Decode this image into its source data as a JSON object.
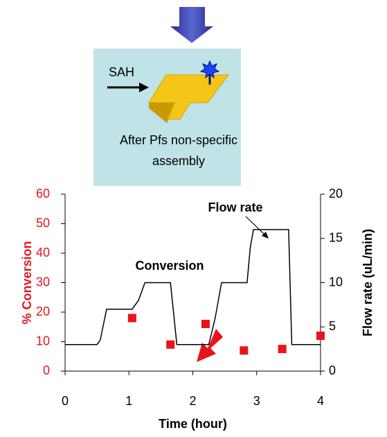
{
  "diagram": {
    "label": "SAH",
    "caption": [
      "After Pfs non-specific",
      "assembly"
    ]
  },
  "chart_data": {
    "type": "combo",
    "xlabel": "Time (hour)",
    "ylabel": "% Conversion",
    "y2label": "Flow rate (uL/min)",
    "xlim": [
      0,
      4
    ],
    "xticks": [
      0,
      1,
      2,
      3,
      4
    ],
    "ylim": [
      0,
      60
    ],
    "yticks": [
      0,
      10,
      20,
      30,
      40,
      50,
      60
    ],
    "y2lim": [
      0,
      20
    ],
    "y2ticks": [
      0,
      5,
      10,
      15,
      20
    ],
    "ycolor": "#e8141c",
    "y2color": "#000000",
    "series": [
      {
        "name": "Conversion",
        "type": "scatter",
        "color": "#e8141c",
        "x": [
          1.05,
          1.65,
          2.2,
          2.8,
          3.4,
          4.0
        ],
        "values": [
          18,
          9,
          16,
          7,
          7.5,
          12
        ]
      },
      {
        "name": "Flow rate",
        "type": "line",
        "axis": "y2",
        "color": "#000000",
        "x": [
          0,
          0.5,
          0.55,
          0.65,
          1.05,
          1.15,
          1.25,
          1.65,
          1.75,
          2.25,
          2.35,
          2.45,
          2.85,
          2.9,
          2.95,
          3.5,
          3.55,
          4.0
        ],
        "values": [
          3,
          3,
          3.5,
          7,
          7,
          8,
          10,
          10,
          3,
          3,
          6,
          10,
          10,
          14,
          16,
          16,
          3,
          3
        ]
      }
    ]
  }
}
